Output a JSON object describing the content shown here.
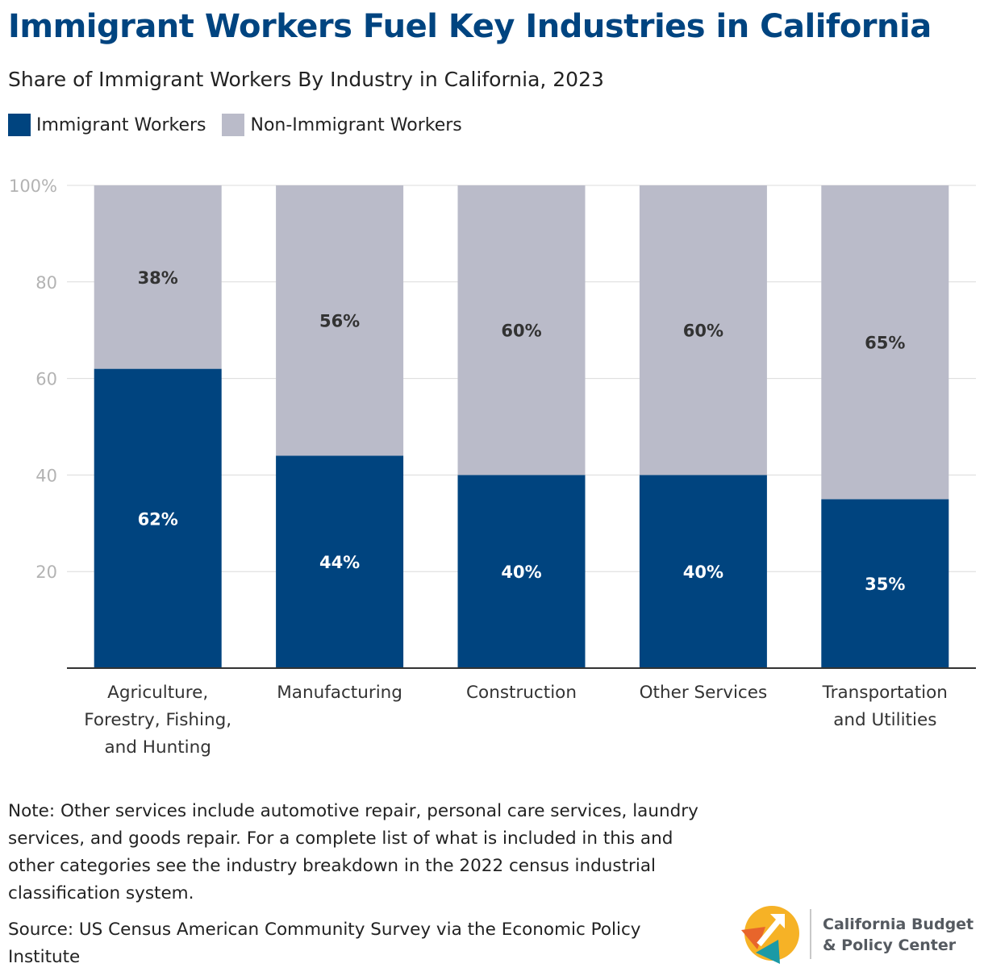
{
  "header": {
    "title": "Immigrant Workers Fuel Key Industries in California",
    "subtitle": "Share of Immigrant Workers By Industry in California, 2023"
  },
  "legend": [
    {
      "label": "Immigrant Workers",
      "color": "#00447f"
    },
    {
      "label": "Non-Immigrant Workers",
      "color": "#babbc9"
    }
  ],
  "chart_data": {
    "type": "bar",
    "stacked": true,
    "categories": [
      [
        "Agriculture,",
        "Forestry, Fishing,",
        "and Hunting"
      ],
      [
        "Manufacturing"
      ],
      [
        "Construction"
      ],
      [
        "Other Services"
      ],
      [
        "Transportation",
        "and Utilities"
      ]
    ],
    "series": [
      {
        "name": "Immigrant Workers",
        "values": [
          62,
          44,
          40,
          40,
          35
        ],
        "labels": [
          "62%",
          "44%",
          "40%",
          "40%",
          "35%"
        ],
        "color": "#00447f",
        "label_color": "#ffffff"
      },
      {
        "name": "Non-Immigrant Workers",
        "values": [
          38,
          56,
          60,
          60,
          65
        ],
        "labels": [
          "38%",
          "56%",
          "60%",
          "60%",
          "65%"
        ],
        "color": "#babbc9",
        "label_color": "#333333"
      }
    ],
    "yticks": [
      {
        "value": 20,
        "label": "20"
      },
      {
        "value": 40,
        "label": "40"
      },
      {
        "value": 60,
        "label": "60"
      },
      {
        "value": 80,
        "label": "80"
      },
      {
        "value": 100,
        "label": "100%"
      }
    ],
    "ylim": [
      0,
      100
    ],
    "grid": true,
    "legend_position": "top-left"
  },
  "footer": {
    "note": "Note: Other services include automotive repair, personal care services, laundry services, and goods repair. For a complete list of what is included in this and other categories see the industry breakdown in the 2022 census industrial classification system.",
    "source": "Source: US Census American Community Survey via the Economic Policy Institute",
    "logo_line1": "California Budget",
    "logo_line2": "& Policy Center"
  }
}
